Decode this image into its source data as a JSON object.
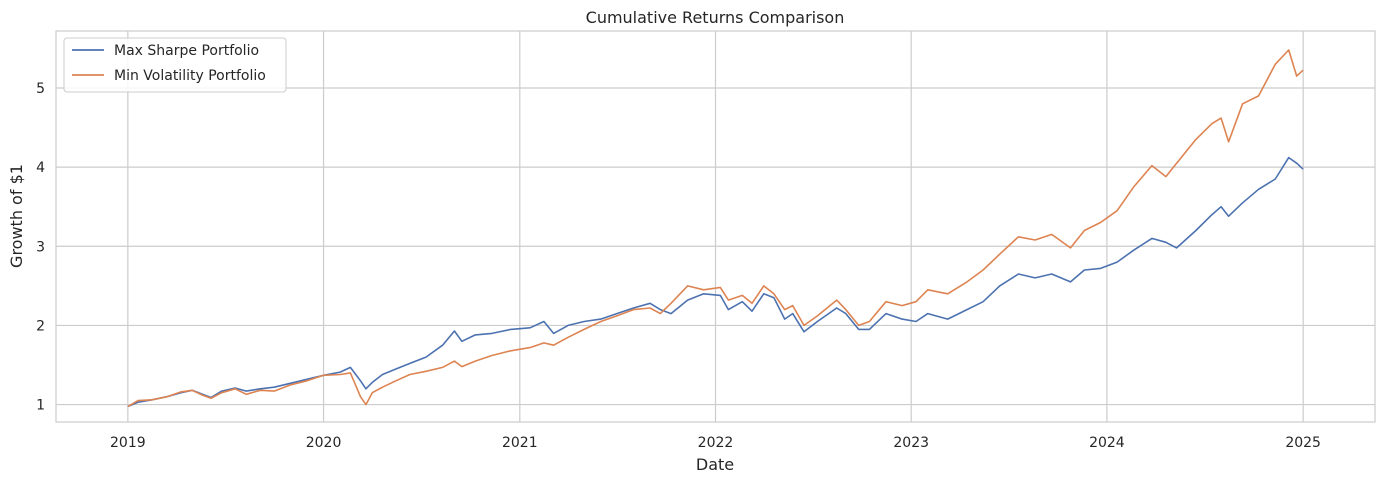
{
  "chart_data": {
    "type": "line",
    "title": "Cumulative Returns Comparison",
    "xlabel": "Date",
    "ylabel": "Growth of $1",
    "xlim": [
      "2018-08-20",
      "2025-05-15"
    ],
    "ylim": [
      0.78,
      5.72
    ],
    "x_ticks": [
      "2019-01-01",
      "2020-01-01",
      "2021-01-01",
      "2022-01-01",
      "2023-01-01",
      "2024-01-01",
      "2025-01-01"
    ],
    "x_tick_labels": [
      "2019",
      "2020",
      "2021",
      "2022",
      "2023",
      "2024",
      "2025"
    ],
    "y_ticks": [
      1,
      2,
      3,
      4,
      5
    ],
    "y_tick_labels": [
      "1",
      "2",
      "3",
      "4",
      "5"
    ],
    "grid": true,
    "legend_position": "top-left",
    "series": [
      {
        "name": "Max Sharpe Portfolio",
        "color": "#4c72b0",
        "points": [
          [
            "2019-01-02",
            0.98
          ],
          [
            "2019-01-20",
            1.03
          ],
          [
            "2019-02-15",
            1.06
          ],
          [
            "2019-03-15",
            1.1
          ],
          [
            "2019-04-10",
            1.15
          ],
          [
            "2019-05-01",
            1.18
          ],
          [
            "2019-05-20",
            1.13
          ],
          [
            "2019-06-05",
            1.09
          ],
          [
            "2019-06-25",
            1.17
          ],
          [
            "2019-07-20",
            1.21
          ],
          [
            "2019-08-10",
            1.17
          ],
          [
            "2019-09-05",
            1.2
          ],
          [
            "2019-10-01",
            1.22
          ],
          [
            "2019-11-01",
            1.27
          ],
          [
            "2019-12-01",
            1.32
          ],
          [
            "2020-01-01",
            1.37
          ],
          [
            "2020-02-01",
            1.41
          ],
          [
            "2020-02-20",
            1.47
          ],
          [
            "2020-03-10",
            1.3
          ],
          [
            "2020-03-20",
            1.2
          ],
          [
            "2020-04-01",
            1.28
          ],
          [
            "2020-04-20",
            1.38
          ],
          [
            "2020-05-15",
            1.45
          ],
          [
            "2020-06-10",
            1.52
          ],
          [
            "2020-07-10",
            1.6
          ],
          [
            "2020-08-10",
            1.75
          ],
          [
            "2020-09-01",
            1.93
          ],
          [
            "2020-09-15",
            1.8
          ],
          [
            "2020-10-10",
            1.88
          ],
          [
            "2020-11-10",
            1.9
          ],
          [
            "2020-12-15",
            1.95
          ],
          [
            "2021-01-20",
            1.97
          ],
          [
            "2021-02-15",
            2.05
          ],
          [
            "2021-03-05",
            1.9
          ],
          [
            "2021-04-01",
            2.0
          ],
          [
            "2021-05-01",
            2.05
          ],
          [
            "2021-06-01",
            2.08
          ],
          [
            "2021-07-01",
            2.15
          ],
          [
            "2021-08-01",
            2.22
          ],
          [
            "2021-09-01",
            2.28
          ],
          [
            "2021-09-20",
            2.2
          ],
          [
            "2021-10-10",
            2.15
          ],
          [
            "2021-11-10",
            2.32
          ],
          [
            "2021-12-10",
            2.4
          ],
          [
            "2022-01-10",
            2.38
          ],
          [
            "2022-01-25",
            2.2
          ],
          [
            "2022-02-20",
            2.3
          ],
          [
            "2022-03-10",
            2.18
          ],
          [
            "2022-04-01",
            2.4
          ],
          [
            "2022-04-20",
            2.35
          ],
          [
            "2022-05-10",
            2.08
          ],
          [
            "2022-05-25",
            2.15
          ],
          [
            "2022-06-15",
            1.92
          ],
          [
            "2022-07-10",
            2.05
          ],
          [
            "2022-08-15",
            2.22
          ],
          [
            "2022-09-01",
            2.15
          ],
          [
            "2022-09-25",
            1.95
          ],
          [
            "2022-10-15",
            1.95
          ],
          [
            "2022-11-15",
            2.15
          ],
          [
            "2022-12-15",
            2.08
          ],
          [
            "2023-01-10",
            2.05
          ],
          [
            "2023-02-01",
            2.15
          ],
          [
            "2023-03-10",
            2.08
          ],
          [
            "2023-04-15",
            2.2
          ],
          [
            "2023-05-15",
            2.3
          ],
          [
            "2023-06-15",
            2.5
          ],
          [
            "2023-07-20",
            2.65
          ],
          [
            "2023-08-20",
            2.6
          ],
          [
            "2023-09-20",
            2.65
          ],
          [
            "2023-10-25",
            2.55
          ],
          [
            "2023-11-20",
            2.7
          ],
          [
            "2023-12-20",
            2.72
          ],
          [
            "2024-01-20",
            2.8
          ],
          [
            "2024-02-20",
            2.95
          ],
          [
            "2024-03-25",
            3.1
          ],
          [
            "2024-04-20",
            3.05
          ],
          [
            "2024-05-10",
            2.98
          ],
          [
            "2024-06-15",
            3.2
          ],
          [
            "2024-07-15",
            3.4
          ],
          [
            "2024-08-01",
            3.5
          ],
          [
            "2024-08-15",
            3.38
          ],
          [
            "2024-09-10",
            3.55
          ],
          [
            "2024-10-10",
            3.72
          ],
          [
            "2024-11-10",
            3.85
          ],
          [
            "2024-12-05",
            4.12
          ],
          [
            "2024-12-20",
            4.05
          ],
          [
            "2024-12-31",
            3.98
          ]
        ]
      },
      {
        "name": "Min Volatility Portfolio",
        "color": "#dd8452",
        "points": [
          [
            "2019-01-02",
            0.98
          ],
          [
            "2019-01-20",
            1.05
          ],
          [
            "2019-02-15",
            1.06
          ],
          [
            "2019-03-15",
            1.1
          ],
          [
            "2019-04-10",
            1.16
          ],
          [
            "2019-05-01",
            1.18
          ],
          [
            "2019-05-20",
            1.12
          ],
          [
            "2019-06-05",
            1.08
          ],
          [
            "2019-06-25",
            1.15
          ],
          [
            "2019-07-20",
            1.2
          ],
          [
            "2019-08-10",
            1.13
          ],
          [
            "2019-09-05",
            1.18
          ],
          [
            "2019-10-01",
            1.17
          ],
          [
            "2019-11-01",
            1.25
          ],
          [
            "2019-12-01",
            1.3
          ],
          [
            "2020-01-01",
            1.37
          ],
          [
            "2020-02-01",
            1.38
          ],
          [
            "2020-02-20",
            1.4
          ],
          [
            "2020-03-10",
            1.1
          ],
          [
            "2020-03-20",
            1.0
          ],
          [
            "2020-04-01",
            1.15
          ],
          [
            "2020-04-20",
            1.22
          ],
          [
            "2020-05-15",
            1.3
          ],
          [
            "2020-06-10",
            1.38
          ],
          [
            "2020-07-10",
            1.42
          ],
          [
            "2020-08-10",
            1.47
          ],
          [
            "2020-09-01",
            1.55
          ],
          [
            "2020-09-15",
            1.48
          ],
          [
            "2020-10-10",
            1.55
          ],
          [
            "2020-11-10",
            1.62
          ],
          [
            "2020-12-15",
            1.68
          ],
          [
            "2021-01-20",
            1.72
          ],
          [
            "2021-02-15",
            1.78
          ],
          [
            "2021-03-05",
            1.75
          ],
          [
            "2021-04-01",
            1.85
          ],
          [
            "2021-05-01",
            1.95
          ],
          [
            "2021-06-01",
            2.05
          ],
          [
            "2021-07-01",
            2.12
          ],
          [
            "2021-08-01",
            2.2
          ],
          [
            "2021-09-01",
            2.22
          ],
          [
            "2021-09-20",
            2.15
          ],
          [
            "2021-10-10",
            2.28
          ],
          [
            "2021-11-10",
            2.5
          ],
          [
            "2021-12-10",
            2.45
          ],
          [
            "2022-01-10",
            2.48
          ],
          [
            "2022-01-25",
            2.32
          ],
          [
            "2022-02-20",
            2.38
          ],
          [
            "2022-03-10",
            2.28
          ],
          [
            "2022-04-01",
            2.5
          ],
          [
            "2022-04-20",
            2.4
          ],
          [
            "2022-05-10",
            2.2
          ],
          [
            "2022-05-25",
            2.25
          ],
          [
            "2022-06-15",
            2.0
          ],
          [
            "2022-07-10",
            2.12
          ],
          [
            "2022-08-15",
            2.32
          ],
          [
            "2022-09-01",
            2.2
          ],
          [
            "2022-09-25",
            2.0
          ],
          [
            "2022-10-15",
            2.05
          ],
          [
            "2022-11-15",
            2.3
          ],
          [
            "2022-12-15",
            2.25
          ],
          [
            "2023-01-10",
            2.3
          ],
          [
            "2023-02-01",
            2.45
          ],
          [
            "2023-03-10",
            2.4
          ],
          [
            "2023-04-15",
            2.55
          ],
          [
            "2023-05-15",
            2.7
          ],
          [
            "2023-06-15",
            2.9
          ],
          [
            "2023-07-20",
            3.12
          ],
          [
            "2023-08-20",
            3.08
          ],
          [
            "2023-09-20",
            3.15
          ],
          [
            "2023-10-25",
            2.98
          ],
          [
            "2023-11-20",
            3.2
          ],
          [
            "2023-12-20",
            3.3
          ],
          [
            "2024-01-20",
            3.45
          ],
          [
            "2024-02-20",
            3.75
          ],
          [
            "2024-03-25",
            4.02
          ],
          [
            "2024-04-20",
            3.88
          ],
          [
            "2024-05-10",
            4.05
          ],
          [
            "2024-06-15",
            4.35
          ],
          [
            "2024-07-15",
            4.55
          ],
          [
            "2024-08-01",
            4.62
          ],
          [
            "2024-08-15",
            4.32
          ],
          [
            "2024-09-10",
            4.8
          ],
          [
            "2024-10-10",
            4.9
          ],
          [
            "2024-11-10",
            5.3
          ],
          [
            "2024-12-05",
            5.48
          ],
          [
            "2024-12-20",
            5.15
          ],
          [
            "2024-12-31",
            5.22
          ]
        ]
      }
    ]
  }
}
